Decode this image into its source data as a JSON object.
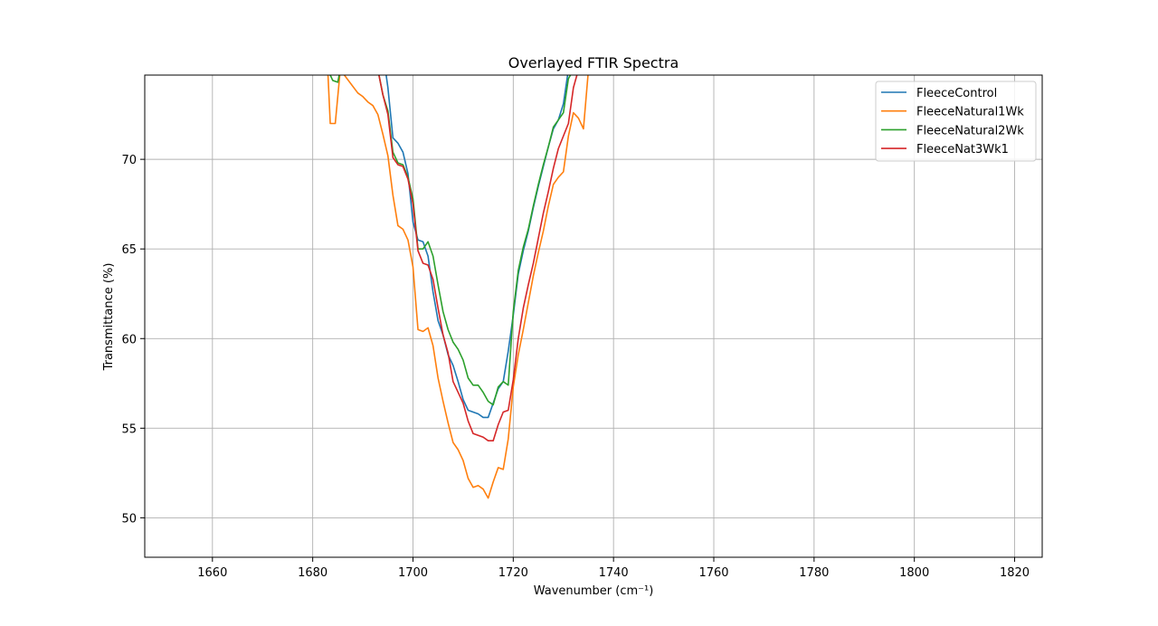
{
  "chart_data": {
    "type": "line",
    "title": "Overlayed FTIR Spectra",
    "xlabel": "Wavenumber (cm⁻¹)",
    "ylabel": "Transmittance (%)",
    "xlim": [
      1646.5,
      1825.5
    ],
    "ylim": [
      47.8,
      74.7
    ],
    "xticks": [
      1660,
      1680,
      1700,
      1720,
      1740,
      1760,
      1780,
      1800,
      1820
    ],
    "yticks": [
      50,
      55,
      60,
      65,
      70
    ],
    "grid": true,
    "legend_position": "top-right",
    "series": [
      {
        "name": "FleeceControl",
        "color": "#1f77b4",
        "points": [
          [
            1694,
            76
          ],
          [
            1695,
            74
          ],
          [
            1696,
            71.2
          ],
          [
            1697,
            70.9
          ],
          [
            1698,
            70.4
          ],
          [
            1699,
            69.2
          ],
          [
            1700,
            66.5
          ],
          [
            1701,
            65.5
          ],
          [
            1702,
            65.4
          ],
          [
            1703,
            64.6
          ],
          [
            1704,
            62.6
          ],
          [
            1705,
            61
          ],
          [
            1706,
            60.2
          ],
          [
            1707,
            59.1
          ],
          [
            1708,
            58.5
          ],
          [
            1709,
            57.6
          ],
          [
            1710,
            56.6
          ],
          [
            1711,
            56
          ],
          [
            1712,
            55.9
          ],
          [
            1713,
            55.8
          ],
          [
            1714,
            55.6
          ],
          [
            1715,
            55.6
          ],
          [
            1716,
            56.4
          ],
          [
            1717,
            57.2
          ],
          [
            1718,
            57.6
          ],
          [
            1719,
            59.3
          ],
          [
            1720,
            61.3
          ],
          [
            1721,
            63.6
          ],
          [
            1722,
            64.9
          ],
          [
            1723,
            66
          ],
          [
            1724,
            67.3
          ],
          [
            1725,
            68.5
          ],
          [
            1726,
            69.6
          ],
          [
            1727,
            70.7
          ],
          [
            1728,
            71.7
          ],
          [
            1729,
            72.2
          ],
          [
            1730,
            73.1
          ],
          [
            1731,
            75
          ]
        ]
      },
      {
        "name": "FleeceNatural1Wk",
        "color": "#ff7f0e",
        "points": [
          [
            1683,
            75
          ],
          [
            1683.5,
            72
          ],
          [
            1684.5,
            72
          ],
          [
            1685.5,
            75
          ],
          [
            1689,
            73.7
          ],
          [
            1690,
            73.5
          ],
          [
            1691,
            73.2
          ],
          [
            1692,
            73
          ],
          [
            1693,
            72.5
          ],
          [
            1694,
            71.4
          ],
          [
            1695,
            70.2
          ],
          [
            1696,
            68
          ],
          [
            1697,
            66.3
          ],
          [
            1698,
            66.1
          ],
          [
            1699,
            65.5
          ],
          [
            1700,
            64
          ],
          [
            1701,
            60.5
          ],
          [
            1702,
            60.4
          ],
          [
            1703,
            60.6
          ],
          [
            1704,
            59.6
          ],
          [
            1705,
            57.8
          ],
          [
            1706,
            56.5
          ],
          [
            1707,
            55.3
          ],
          [
            1708,
            54.2
          ],
          [
            1709,
            53.8
          ],
          [
            1710,
            53.2
          ],
          [
            1711,
            52.2
          ],
          [
            1712,
            51.7
          ],
          [
            1713,
            51.8
          ],
          [
            1714,
            51.6
          ],
          [
            1715,
            51.1
          ],
          [
            1716,
            52
          ],
          [
            1717,
            52.8
          ],
          [
            1718,
            52.7
          ],
          [
            1719,
            54.4
          ],
          [
            1720,
            57.3
          ],
          [
            1721,
            59.1
          ],
          [
            1722,
            60.5
          ],
          [
            1723,
            62
          ],
          [
            1724,
            63.5
          ],
          [
            1725,
            64.8
          ],
          [
            1726,
            66
          ],
          [
            1727,
            67.4
          ],
          [
            1728,
            68.6
          ],
          [
            1729,
            69
          ],
          [
            1730,
            69.3
          ],
          [
            1731,
            71.3
          ],
          [
            1732,
            72.6
          ],
          [
            1733,
            72.3
          ],
          [
            1734,
            71.7
          ],
          [
            1735,
            75
          ]
        ]
      },
      {
        "name": "FleeceNatural2Wk",
        "color": "#2ca02c",
        "points": [
          [
            1683,
            75
          ],
          [
            1684,
            74.4
          ],
          [
            1685,
            74.3
          ],
          [
            1685.5,
            75
          ],
          [
            1693,
            75
          ],
          [
            1694,
            73.6
          ],
          [
            1695,
            72.7
          ],
          [
            1696,
            70.4
          ],
          [
            1697,
            69.8
          ],
          [
            1698,
            69.7
          ],
          [
            1699,
            69
          ],
          [
            1700,
            67.8
          ],
          [
            1701,
            65
          ],
          [
            1702,
            65
          ],
          [
            1703,
            65.4
          ],
          [
            1704,
            64.6
          ],
          [
            1705,
            63
          ],
          [
            1706,
            61.5
          ],
          [
            1707,
            60.5
          ],
          [
            1708,
            59.8
          ],
          [
            1709,
            59.4
          ],
          [
            1710,
            58.8
          ],
          [
            1711,
            57.8
          ],
          [
            1712,
            57.4
          ],
          [
            1713,
            57.4
          ],
          [
            1714,
            57
          ],
          [
            1715,
            56.5
          ],
          [
            1716,
            56.3
          ],
          [
            1717,
            57.3
          ],
          [
            1718,
            57.6
          ],
          [
            1719,
            57.4
          ],
          [
            1720,
            61.5
          ],
          [
            1721,
            63.8
          ],
          [
            1722,
            65.1
          ],
          [
            1723,
            66.1
          ],
          [
            1724,
            67.4
          ],
          [
            1725,
            68.6
          ],
          [
            1726,
            69.7
          ],
          [
            1727,
            70.7
          ],
          [
            1728,
            71.8
          ],
          [
            1729,
            72.2
          ],
          [
            1730,
            72.6
          ],
          [
            1731,
            74.5
          ],
          [
            1732,
            75
          ]
        ]
      },
      {
        "name": "FleeceNat3Wk1",
        "color": "#d62728",
        "points": [
          [
            1693,
            75
          ],
          [
            1694,
            73.6
          ],
          [
            1695,
            72.5
          ],
          [
            1696,
            70.1
          ],
          [
            1697,
            69.7
          ],
          [
            1698,
            69.6
          ],
          [
            1699,
            68.9
          ],
          [
            1700,
            67.5
          ],
          [
            1701,
            64.9
          ],
          [
            1702,
            64.2
          ],
          [
            1703,
            64.1
          ],
          [
            1704,
            63.3
          ],
          [
            1705,
            61.7
          ],
          [
            1706,
            60.2
          ],
          [
            1707,
            59.2
          ],
          [
            1708,
            57.6
          ],
          [
            1709,
            57
          ],
          [
            1710,
            56.4
          ],
          [
            1711,
            55.4
          ],
          [
            1712,
            54.7
          ],
          [
            1713,
            54.6
          ],
          [
            1714,
            54.5
          ],
          [
            1715,
            54.3
          ],
          [
            1716,
            54.3
          ],
          [
            1717,
            55.2
          ],
          [
            1718,
            55.9
          ],
          [
            1719,
            56
          ],
          [
            1720,
            57.7
          ],
          [
            1721,
            60
          ],
          [
            1722,
            61.7
          ],
          [
            1723,
            63
          ],
          [
            1724,
            64.2
          ],
          [
            1725,
            65.6
          ],
          [
            1726,
            67
          ],
          [
            1727,
            68.2
          ],
          [
            1728,
            69.5
          ],
          [
            1729,
            70.6
          ],
          [
            1730,
            71.3
          ],
          [
            1731,
            72
          ],
          [
            1732,
            74
          ],
          [
            1733,
            75
          ]
        ]
      }
    ]
  }
}
